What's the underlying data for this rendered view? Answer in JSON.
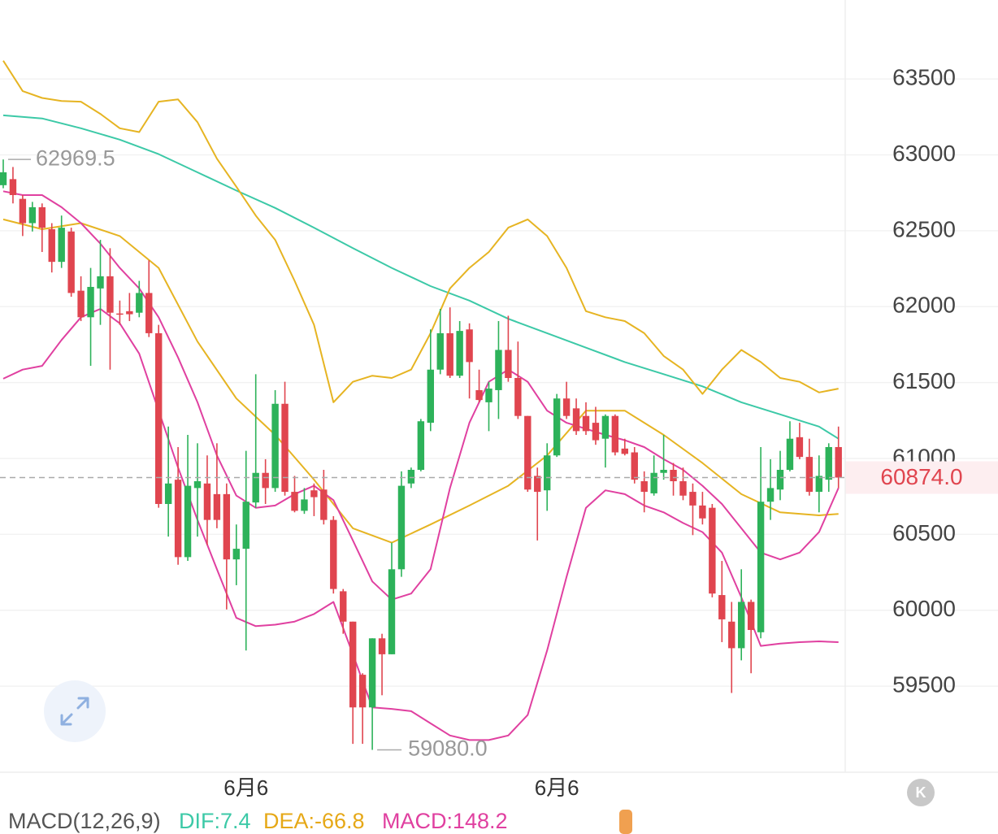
{
  "chart_data": {
    "type": "candlestick",
    "categories": [
      null,
      null,
      null,
      null,
      null,
      null,
      null,
      null,
      null,
      null,
      null,
      null,
      null,
      null,
      null,
      null,
      null,
      null,
      null,
      null,
      null,
      null,
      null,
      null,
      null,
      "6月6",
      null,
      null,
      null,
      null,
      null,
      null,
      null,
      null,
      null,
      null,
      null,
      null,
      null,
      null,
      null,
      null,
      null,
      null,
      null,
      null,
      null,
      null,
      null,
      null,
      null,
      null,
      null,
      null,
      null,
      null,
      null,
      "6月6",
      null,
      null,
      null,
      null,
      null,
      null,
      null,
      null,
      null,
      null,
      null,
      null,
      null,
      null,
      null,
      null,
      null,
      null,
      null,
      null,
      null,
      null,
      null,
      null,
      null,
      null,
      null,
      null,
      null
    ],
    "open": [
      62800,
      62840,
      62710,
      62550,
      62655,
      62510,
      62295,
      62495,
      62105,
      61930,
      62120,
      62200,
      61955,
      61970,
      61960,
      62090,
      61825,
      60700,
      60860,
      60350,
      60805,
      60835,
      60765,
      60765,
      60335,
      60405,
      60710,
      60905,
      60805,
      61360,
      60780,
      60655,
      60790,
      60795,
      60595,
      60125,
      59925,
      59575,
      59360,
      59815,
      59710,
      60270,
      60835,
      60925,
      61235,
      61585,
      61825,
      61545,
      61850,
      61450,
      61370,
      61450,
      61715,
      61530,
      61280,
      60885,
      60790,
      61020,
      61395,
      61330,
      61280,
      61235,
      61130,
      61280,
      61065,
      61040,
      60850,
      60770,
      60905,
      60925,
      60850,
      60780,
      60690,
      60675,
      60100,
      59925,
      59750,
      60055,
      59855,
      60715,
      60795,
      60925,
      61140,
      61010,
      60780,
      60860,
      61075
    ],
    "high": [
      62969.5,
      62920,
      62735,
      62690,
      62680,
      62550,
      62600,
      62520,
      62200,
      62255,
      62440,
      62385,
      62040,
      62090,
      62170,
      62305,
      61880,
      61210,
      61075,
      61155,
      61100,
      61020,
      61100,
      60835,
      60565,
      61050,
      61555,
      60995,
      61450,
      61505,
      60885,
      60805,
      60835,
      60925,
      60620,
      60140,
      59925,
      59585,
      59815,
      59845,
      60445,
      60915,
      60940,
      61260,
      61850,
      61985,
      61995,
      61905,
      61890,
      61585,
      61505,
      61905,
      61940,
      61770,
      61280,
      60940,
      61100,
      61425,
      61505,
      61395,
      61370,
      61340,
      61290,
      61290,
      61130,
      61075,
      60915,
      61020,
      61155,
      60970,
      60940,
      60835,
      60780,
      60700,
      60325,
      60055,
      60270,
      60070,
      61075,
      60995,
      61050,
      61245,
      61235,
      61130,
      61020,
      61100,
      61210
    ],
    "low": [
      62780,
      62680,
      62465,
      62495,
      62360,
      62225,
      62255,
      62065,
      61905,
      61610,
      61880,
      61585,
      61880,
      61905,
      61930,
      61800,
      60675,
      60485,
      60300,
      60325,
      60485,
      60430,
      60540,
      60005,
      60165,
      59735,
      60675,
      60700,
      60780,
      60755,
      60645,
      60635,
      60620,
      60565,
      60110,
      59845,
      59120,
      59120,
      59080,
      59440,
      59710,
      60220,
      60805,
      60915,
      61180,
      61555,
      61530,
      61530,
      61395,
      61370,
      61180,
      61260,
      61505,
      61260,
      60780,
      60460,
      60655,
      61010,
      61260,
      61155,
      61155,
      61090,
      60940,
      61020,
      61020,
      60835,
      60645,
      60755,
      60860,
      60755,
      60725,
      60495,
      60565,
      60085,
      59790,
      59455,
      59670,
      59585,
      59815,
      60595,
      60725,
      60915,
      60995,
      60755,
      60645,
      60780,
      60805
    ],
    "close": [
      62885,
      62735,
      62550,
      62655,
      62520,
      62295,
      62520,
      62090,
      61930,
      62130,
      62200,
      61960,
      61950,
      61950,
      62090,
      61825,
      60700,
      60835,
      60350,
      60820,
      60850,
      60595,
      60595,
      60335,
      60405,
      60715,
      60905,
      60805,
      61360,
      60780,
      60655,
      60730,
      60745,
      60595,
      60140,
      59925,
      59360,
      59360,
      59815,
      59710,
      60270,
      60820,
      60925,
      61245,
      61585,
      61825,
      61545,
      61840,
      61635,
      61385,
      61460,
      61715,
      61530,
      61280,
      60795,
      60780,
      61020,
      61395,
      61280,
      61180,
      61180,
      61120,
      61280,
      61040,
      61030,
      60860,
      60780,
      60905,
      60925,
      60850,
      60755,
      60690,
      60605,
      60110,
      59940,
      59750,
      60055,
      59870,
      60715,
      60805,
      60925,
      61130,
      61010,
      60780,
      60885,
      61075,
      60874
    ],
    "up_color": "#2db25a",
    "down_color": "#e0454f",
    "series": [
      {
        "color": "#3cc9a7",
        "x": [
          0,
          4,
          8,
          12,
          16,
          20,
          24,
          28,
          32,
          36,
          40,
          44,
          48,
          52,
          56,
          60,
          64,
          68,
          72,
          76,
          80,
          84,
          86
        ],
        "values": [
          63260,
          63240,
          63175,
          63100,
          63005,
          62885,
          62765,
          62650,
          62520,
          62385,
          62255,
          62135,
          62040,
          61920,
          61825,
          61730,
          61635,
          61555,
          61475,
          61370,
          61290,
          61210,
          61130
        ]
      },
      {
        "color": "#e6b422",
        "x": [
          0,
          4,
          8,
          12,
          16,
          20,
          24,
          28,
          32,
          36,
          40,
          44,
          48,
          52,
          56,
          60,
          64,
          68,
          72,
          76,
          80,
          84,
          86
        ],
        "values": [
          62575,
          62510,
          62550,
          62465,
          62255,
          61770,
          61395,
          61155,
          60860,
          60540,
          60445,
          60565,
          60690,
          60820,
          61020,
          61315,
          61315,
          61155,
          60970,
          60765,
          60645,
          60625,
          60635
        ]
      },
      {
        "color": "#e6b422",
        "x": [
          0,
          2,
          4,
          6,
          8,
          10,
          12,
          14,
          16,
          18,
          20,
          22,
          24,
          26,
          28,
          30,
          32,
          34,
          36,
          38,
          40,
          42,
          44,
          46,
          48,
          50,
          52,
          54,
          56,
          58,
          60,
          62,
          64,
          66,
          68,
          70,
          72,
          74,
          76,
          78,
          80,
          82,
          84,
          86
        ],
        "values": [
          63620,
          63420,
          63375,
          63355,
          63350,
          63270,
          63175,
          63150,
          63350,
          63365,
          63215,
          62975,
          62790,
          62600,
          62440,
          62170,
          61880,
          61370,
          61505,
          61545,
          61530,
          61585,
          61825,
          62120,
          62255,
          62360,
          62520,
          62575,
          62465,
          62255,
          61970,
          61930,
          61905,
          61825,
          61675,
          61585,
          61425,
          61585,
          61715,
          61635,
          61530,
          61505,
          61435,
          61460
        ]
      },
      {
        "color": "#e040a0",
        "x": [
          0,
          2,
          4,
          6,
          8,
          10,
          12,
          14,
          16,
          18,
          20,
          22,
          24,
          26,
          28,
          30,
          32,
          34,
          36,
          38,
          40,
          42,
          44,
          46,
          48,
          50,
          52,
          54,
          56,
          58,
          60,
          62,
          64,
          66,
          68,
          70,
          72,
          74,
          76,
          78,
          80,
          82,
          84,
          86
        ],
        "values": [
          61525,
          61585,
          61610,
          61780,
          61930,
          61985,
          61890,
          61690,
          61315,
          60940,
          60595,
          60270,
          59950,
          59895,
          59905,
          59925,
          59975,
          60055,
          59710,
          59360,
          59350,
          59335,
          59255,
          59175,
          59145,
          59145,
          59175,
          59310,
          59735,
          60220,
          60675,
          60790,
          60765,
          60690,
          60645,
          60575,
          60515,
          60380,
          60085,
          59765,
          59780,
          59790,
          59795,
          59790
        ]
      },
      {
        "color": "#e040a0",
        "x": [
          0,
          2,
          4,
          6,
          8,
          10,
          12,
          14,
          16,
          18,
          20,
          22,
          24,
          26,
          28,
          30,
          32,
          34,
          36,
          38,
          40,
          42,
          44,
          46,
          48,
          50,
          52,
          54,
          56,
          58,
          60,
          62,
          64,
          66,
          68,
          70,
          72,
          74,
          76,
          78,
          80,
          82,
          84,
          86
        ],
        "values": [
          62760,
          62735,
          62735,
          62655,
          62550,
          62415,
          62255,
          62120,
          61930,
          61665,
          61370,
          61020,
          60755,
          60675,
          60690,
          60765,
          60820,
          60725,
          60460,
          60190,
          60070,
          60110,
          60270,
          60805,
          61235,
          61505,
          61585,
          61505,
          61315,
          61235,
          61195,
          61155,
          61120,
          61075,
          60995,
          60925,
          60820,
          60700,
          60540,
          60380,
          60335,
          60380,
          60515,
          60805
        ]
      }
    ],
    "ylim": [
      58933,
      64020
    ],
    "yticks": [
      59500,
      60000,
      60500,
      61000,
      61500,
      62000,
      62500,
      63000,
      63500
    ],
    "grid": true,
    "high_label": {
      "value": 62969.5,
      "label": "62969.5"
    },
    "low_label": {
      "value": 59080,
      "label": "59080.0"
    },
    "last_price": {
      "value": 60874,
      "label": "60874.0"
    },
    "macd_legend": [
      {
        "label": "MACD(12,26,9)",
        "color": "#555555"
      },
      {
        "label": "DIF:7.4",
        "color": "#3cc9a7"
      },
      {
        "label": "DEA:-66.8",
        "color": "#e6a817"
      },
      {
        "label": "MACD:148.2",
        "color": "#e040a0"
      }
    ]
  }
}
